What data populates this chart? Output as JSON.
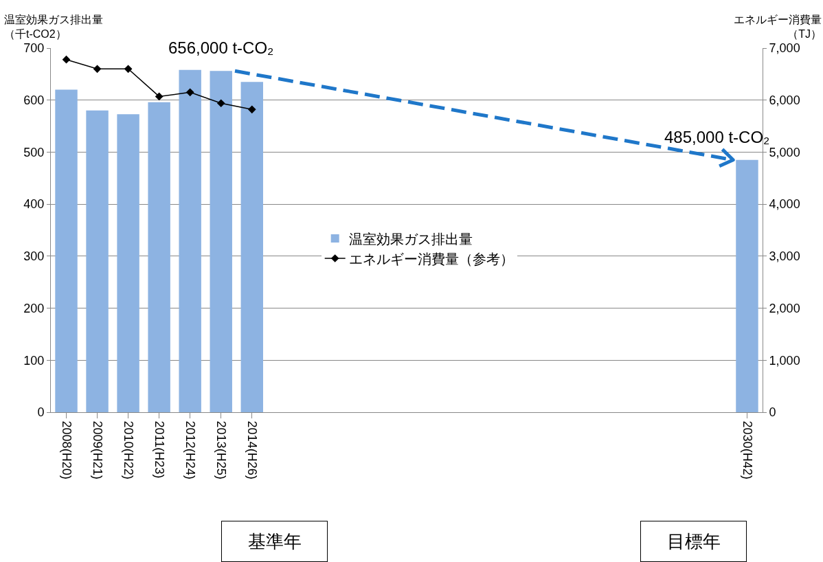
{
  "chart_data": {
    "type": "bar",
    "ylabel": "温室効果ガス排出量（千t-CO2）",
    "y2label": "エネルギー消費量（TJ）",
    "categories": [
      "2008(H20)",
      "2009(H21)",
      "2010(H22)",
      "2011(H23)",
      "2012(H24)",
      "2013(H25)",
      "2014(H26)",
      null,
      null,
      null,
      null,
      null,
      null,
      null,
      null,
      null,
      null,
      null,
      null,
      null,
      null,
      null,
      "2030(H42)"
    ],
    "series": [
      {
        "name": "温室効果ガス排出量",
        "color": "#8db3e2",
        "values": [
          620,
          580,
          573,
          596,
          658,
          656,
          635,
          null,
          null,
          null,
          null,
          null,
          null,
          null,
          null,
          null,
          null,
          null,
          null,
          null,
          null,
          null,
          485
        ]
      },
      {
        "name": "エネルギー消費量（参考）",
        "type": "line",
        "axis": "y2",
        "color": "#000000",
        "values": [
          6780,
          6600,
          6600,
          6070,
          6150,
          5940,
          5820,
          null,
          null,
          null,
          null,
          null,
          null,
          null,
          null,
          null,
          null,
          null,
          null,
          null,
          null,
          null,
          null
        ]
      }
    ],
    "ylim": [
      0,
      700
    ],
    "yticks": [
      0,
      100,
      200,
      300,
      400,
      500,
      600,
      700
    ],
    "y2lim": [
      0,
      7000
    ],
    "y2ticks": [
      0,
      {
        "value": 1000,
        "label": "1,000"
      },
      {
        "value": 2000,
        "label": "2,000"
      },
      {
        "value": 3000,
        "label": "3,000"
      },
      {
        "value": 4000,
        "label": "4,000"
      },
      {
        "value": 5000,
        "label": "5,000"
      },
      {
        "value": 6000,
        "label": "6,000"
      },
      {
        "value": 7000,
        "label": "7,000"
      }
    ],
    "annotations": [
      {
        "text": "656,000 t-CO₂",
        "x": "2013(H25)",
        "y": 656
      },
      {
        "text": "485,000 t-CO₂",
        "x": "2030(H42)",
        "y": 485
      },
      "基準年",
      "目標年"
    ],
    "grid": "y",
    "legend": "center",
    "marker": "diamond",
    "line_style": "solid"
  }
}
